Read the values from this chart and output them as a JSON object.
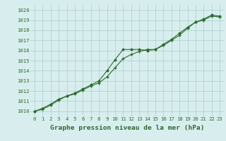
{
  "line1_x": [
    0,
    1,
    2,
    3,
    4,
    5,
    6,
    7,
    8,
    9,
    10,
    11,
    12,
    13,
    14,
    15,
    16,
    17,
    18,
    19,
    20,
    21,
    22,
    23
  ],
  "line1_y": [
    1010.0,
    1010.3,
    1010.7,
    1011.2,
    1011.5,
    1011.8,
    1012.2,
    1012.6,
    1013.0,
    1014.0,
    1015.1,
    1016.1,
    1016.1,
    1016.1,
    1016.0,
    1016.1,
    1016.6,
    1017.1,
    1017.7,
    1018.3,
    1018.8,
    1019.1,
    1019.5,
    1019.4
  ],
  "line2_x": [
    0,
    1,
    2,
    3,
    4,
    5,
    6,
    7,
    8,
    9,
    10,
    11,
    12,
    13,
    14,
    15,
    16,
    17,
    18,
    19,
    20,
    21,
    22,
    23
  ],
  "line2_y": [
    1010.0,
    1010.2,
    1010.6,
    1011.1,
    1011.5,
    1011.7,
    1012.1,
    1012.5,
    1012.8,
    1013.4,
    1014.3,
    1015.2,
    1015.6,
    1015.9,
    1016.1,
    1016.1,
    1016.5,
    1017.0,
    1017.5,
    1018.2,
    1018.8,
    1019.0,
    1019.4,
    1019.3
  ],
  "line_color": "#2d6a2d",
  "bg_color": "#d8eeee",
  "grid_color": "#aacccc",
  "title": "Graphe pression niveau de la mer (hPa)",
  "xlim": [
    -0.5,
    23.5
  ],
  "ylim": [
    1009.5,
    1020.5
  ],
  "yticks": [
    1010,
    1011,
    1012,
    1013,
    1014,
    1015,
    1016,
    1017,
    1018,
    1019,
    1020
  ],
  "xticks": [
    0,
    1,
    2,
    3,
    4,
    5,
    6,
    7,
    8,
    9,
    10,
    11,
    12,
    13,
    14,
    15,
    16,
    17,
    18,
    19,
    20,
    21,
    22,
    23
  ],
  "tick_fontsize": 5.2,
  "title_fontsize": 6.8,
  "marker_size": 2.5,
  "linewidth": 0.8
}
